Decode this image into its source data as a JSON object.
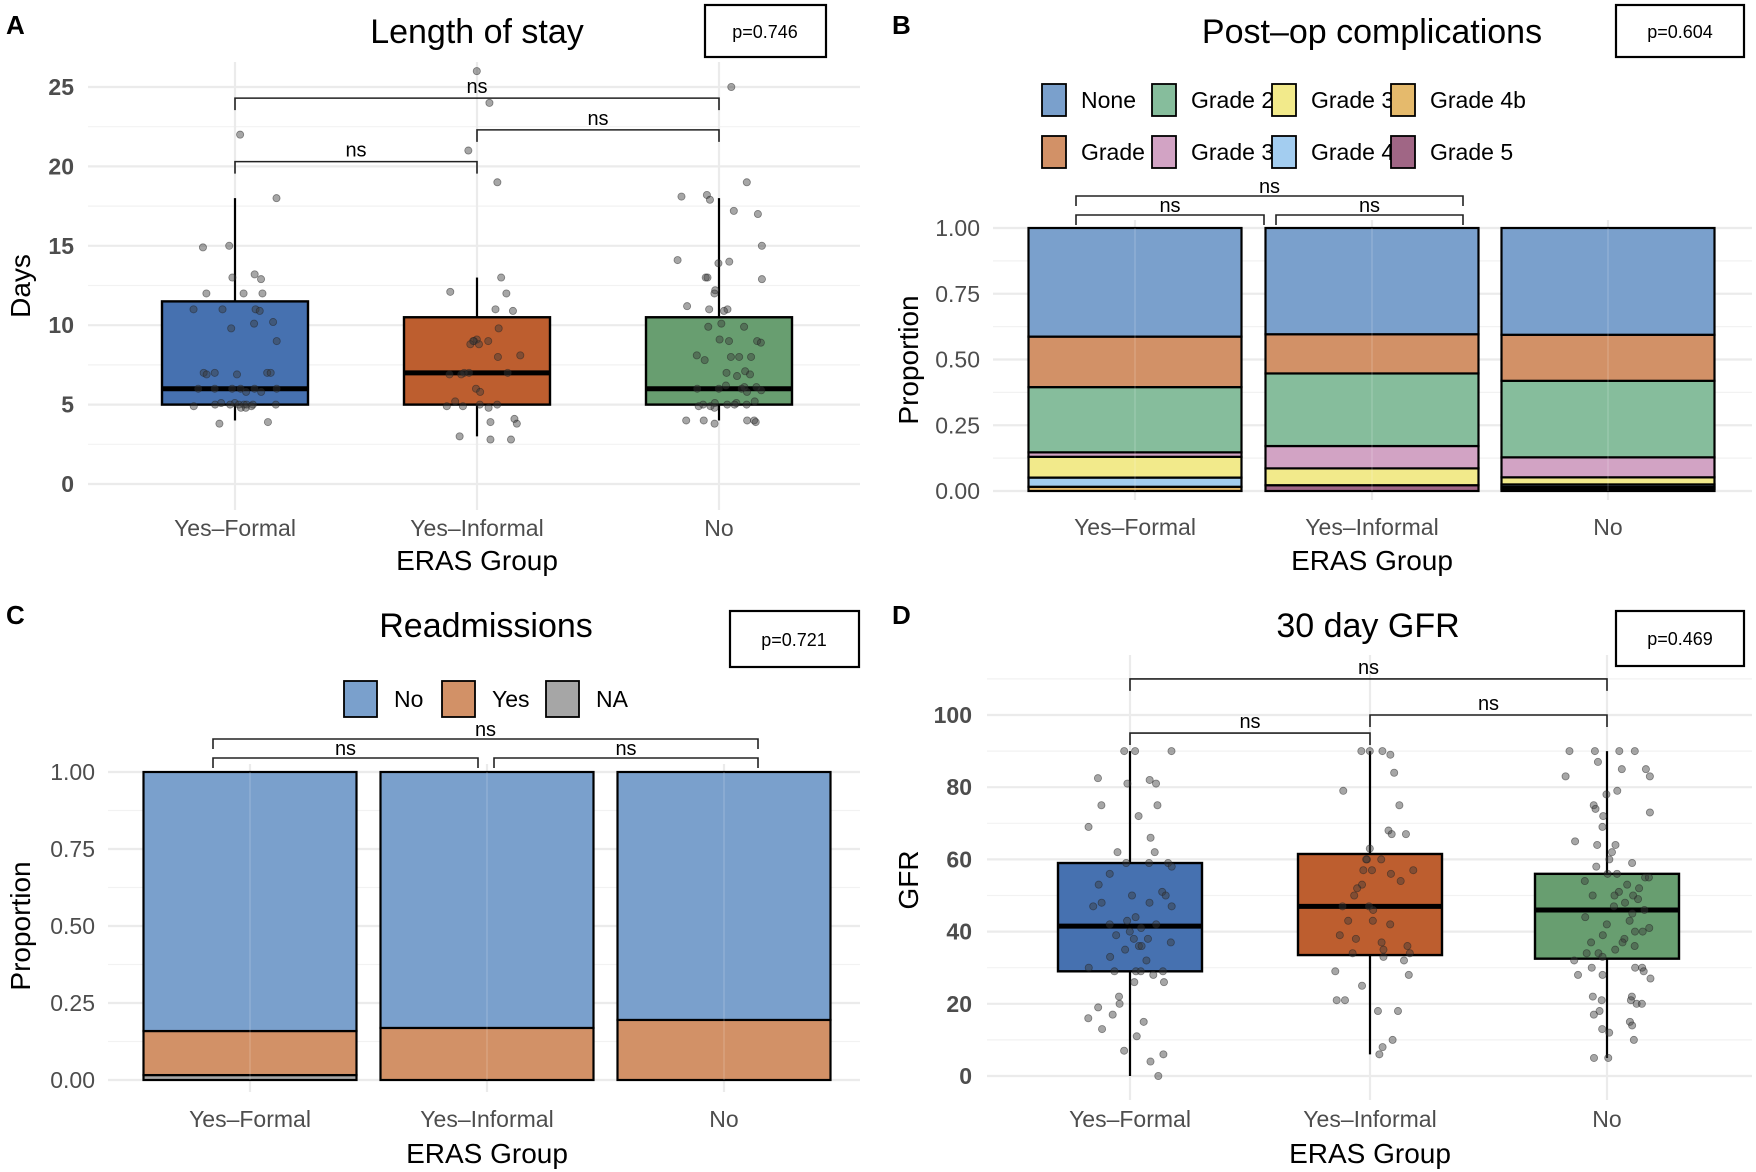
{
  "figure": {
    "panels": [
      "A",
      "B",
      "C",
      "D"
    ]
  },
  "chart_data": [
    {
      "panel": "A",
      "type": "box",
      "title": "Length of stay",
      "p_value_label": "p=0.746",
      "xlabel": "ERAS Group",
      "ylabel": "Days",
      "categories": [
        "Yes–Formal",
        "Yes–Informal",
        "No"
      ],
      "ylim": [
        0,
        26
      ],
      "yticks": [
        0,
        5,
        10,
        15,
        20,
        25
      ],
      "grid": true,
      "colors": [
        "#4671b0",
        "#bd5e2f",
        "#689e70"
      ],
      "boxes": [
        {
          "q1": 5,
          "median": 6,
          "q3": 11.5,
          "whisker_low": 4,
          "whisker_high": 18
        },
        {
          "q1": 5,
          "median": 7,
          "q3": 10.5,
          "whisker_low": 3,
          "whisker_high": 13
        },
        {
          "q1": 5,
          "median": 6,
          "q3": 10.5,
          "whisker_low": 4,
          "whisker_high": 18
        }
      ],
      "points": [
        [
          22,
          18,
          15,
          14.9,
          13.2,
          13,
          12.9,
          12,
          12,
          12,
          11,
          11,
          11,
          10.9,
          10.2,
          10.1,
          9.8,
          9,
          7,
          7,
          7,
          7,
          6.9,
          6.9,
          6,
          6,
          6,
          6,
          6,
          6,
          5.8,
          5.8,
          5.1,
          5.1,
          5,
          5,
          5,
          5,
          5,
          5,
          5,
          4.9,
          4.9,
          4.8,
          4.8,
          3.9,
          3.8
        ],
        [
          26,
          24,
          21,
          19,
          13,
          12.1,
          12,
          11,
          10.9,
          9.8,
          9.1,
          9,
          9,
          9,
          8.8,
          8.8,
          8.1,
          8,
          7,
          7,
          7,
          6.9,
          6.9,
          6,
          5.8,
          5.2,
          5,
          5,
          4.9,
          4.9,
          4.8,
          4.1,
          3.9,
          3.8,
          3,
          2.8,
          2.8
        ],
        [
          25,
          19,
          18.2,
          18.1,
          17.9,
          17.2,
          17,
          15,
          14.1,
          14,
          13.9,
          13,
          13,
          12.9,
          12.2,
          12,
          11.2,
          11,
          11,
          10.9,
          10.1,
          9.9,
          9.9,
          9.1,
          9,
          9,
          8.9,
          8.1,
          8,
          8,
          8,
          7.8,
          7.1,
          7,
          6.9,
          6.8,
          6.2,
          6.1,
          6.1,
          6,
          6,
          6,
          5.9,
          5.8,
          5.2,
          5.1,
          5.1,
          5,
          5,
          5,
          5,
          4.9,
          4.9,
          4.8,
          4,
          4,
          4,
          4,
          3.9,
          3.8
        ]
      ],
      "comparisons": [
        {
          "groups": [
            0,
            1
          ],
          "label": "ns",
          "y": 20.3
        },
        {
          "groups": [
            1,
            2
          ],
          "label": "ns",
          "y": 22.3
        },
        {
          "groups": [
            0,
            2
          ],
          "label": "ns",
          "y": 24.3
        }
      ]
    },
    {
      "panel": "B",
      "type": "stacked_bar",
      "title": "Post–op complications",
      "p_value_label": "p=0.604",
      "xlabel": "ERAS Group",
      "ylabel": "Proportion",
      "categories": [
        "Yes–Formal",
        "Yes–Informal",
        "No"
      ],
      "ylim": [
        0,
        1
      ],
      "yticks": [
        "0.00",
        "0.25",
        "0.50",
        "0.75",
        "1.00"
      ],
      "grid": true,
      "legend_position": "top",
      "legend": [
        {
          "label": "None",
          "color": "#7aa0cc"
        },
        {
          "label": "Grade 2",
          "color": "#86bd9c"
        },
        {
          "label": "Grade 3b",
          "color": "#f2ea8b"
        },
        {
          "label": "Grade 4b",
          "color": "#e5ba6c"
        },
        {
          "label": "Grade 1",
          "color": "#d29167"
        },
        {
          "label": "Grade 3a",
          "color": "#d2a3c4"
        },
        {
          "label": "Grade 4a",
          "color": "#a3cdf0"
        },
        {
          "label": "Grade 5",
          "color": "#a06685"
        }
      ],
      "stack_order_bottom_to_top": [
        "Grade 5",
        "Grade 4b",
        "Grade 4a",
        "Grade 3b",
        "Grade 3a",
        "Grade 2",
        "Grade 1",
        "None"
      ],
      "series": [
        {
          "name": "Grade 5",
          "values": [
            0.0,
            0.022,
            0.008
          ]
        },
        {
          "name": "Grade 4b",
          "values": [
            0.016,
            0.0,
            0.008
          ]
        },
        {
          "name": "Grade 4a",
          "values": [
            0.035,
            0.0,
            0.009
          ]
        },
        {
          "name": "Grade 3b",
          "values": [
            0.079,
            0.064,
            0.027
          ]
        },
        {
          "name": "Grade 3a",
          "values": [
            0.017,
            0.085,
            0.076
          ]
        },
        {
          "name": "Grade 2",
          "values": [
            0.248,
            0.276,
            0.291
          ]
        },
        {
          "name": "Grade 1",
          "values": [
            0.192,
            0.149,
            0.175
          ]
        },
        {
          "name": "None",
          "values": [
            0.413,
            0.404,
            0.406
          ]
        }
      ],
      "comparisons": [
        {
          "groups": [
            0,
            1
          ],
          "label": "ns",
          "level": 0
        },
        {
          "groups": [
            1,
            2
          ],
          "label": "ns",
          "level": 0
        },
        {
          "groups": [
            0,
            2
          ],
          "label": "ns",
          "level": 1
        }
      ]
    },
    {
      "panel": "C",
      "type": "stacked_bar",
      "title": "Readmissions",
      "p_value_label": "p=0.721",
      "xlabel": "ERAS Group",
      "ylabel": "Proportion",
      "categories": [
        "Yes–Formal",
        "Yes–Informal",
        "No"
      ],
      "ylim": [
        0,
        1
      ],
      "yticks": [
        "0.00",
        "0.25",
        "0.50",
        "0.75",
        "1.00"
      ],
      "grid": true,
      "legend_position": "top",
      "legend": [
        {
          "label": "No",
          "color": "#7aa0cc"
        },
        {
          "label": "Yes",
          "color": "#d29167"
        },
        {
          "label": "NA",
          "color": "#a6a6a6"
        }
      ],
      "stack_order_bottom_to_top": [
        "NA",
        "Yes",
        "No"
      ],
      "series": [
        {
          "name": "NA",
          "values": [
            0.016,
            0.0,
            0.0
          ]
        },
        {
          "name": "Yes",
          "values": [
            0.143,
            0.169,
            0.195
          ]
        },
        {
          "name": "No",
          "values": [
            0.841,
            0.831,
            0.805
          ]
        }
      ],
      "comparisons": [
        {
          "groups": [
            0,
            1
          ],
          "label": "ns",
          "level": 0
        },
        {
          "groups": [
            1,
            2
          ],
          "label": "ns",
          "level": 0
        },
        {
          "groups": [
            0,
            2
          ],
          "label": "ns",
          "level": 1
        }
      ]
    },
    {
      "panel": "D",
      "type": "box",
      "title": "30 day GFR",
      "p_value_label": "p=0.469",
      "xlabel": "ERAS Group",
      "ylabel": "GFR",
      "categories": [
        "Yes–Formal",
        "Yes–Informal",
        "No"
      ],
      "ylim": [
        0,
        110
      ],
      "yticks": [
        0,
        20,
        40,
        60,
        80,
        100
      ],
      "grid": true,
      "colors": [
        "#4671b0",
        "#bd5e2f",
        "#689e70"
      ],
      "boxes": [
        {
          "q1": 29,
          "median": 41.5,
          "q3": 59,
          "whisker_low": 0,
          "whisker_high": 90
        },
        {
          "q1": 33.5,
          "median": 47,
          "q3": 61.5,
          "whisker_low": 6,
          "whisker_high": 90
        },
        {
          "q1": 32.5,
          "median": 46,
          "q3": 56,
          "whisker_low": 5,
          "whisker_high": 90
        }
      ],
      "points": [
        [
          90,
          90,
          90,
          82.5,
          82,
          81,
          81,
          75,
          75,
          72,
          69,
          66,
          62,
          62,
          59,
          59,
          59,
          58,
          56,
          53,
          51,
          50,
          50,
          48,
          48,
          47,
          47,
          44,
          43,
          42,
          42,
          41,
          40,
          39,
          38,
          38,
          37,
          36,
          36,
          35,
          33,
          32,
          30,
          29,
          29,
          29,
          29,
          28,
          26,
          26,
          22,
          20,
          19,
          17,
          16,
          15,
          13,
          11,
          7,
          6,
          4,
          0
        ],
        [
          90,
          90,
          90,
          89,
          84,
          79,
          75,
          68,
          67,
          67,
          63,
          60,
          60,
          60,
          57,
          57,
          57,
          56,
          54,
          53,
          52,
          50,
          47,
          47,
          46,
          43,
          43,
          42,
          39,
          38,
          37,
          36,
          35,
          34,
          34,
          33,
          32,
          29,
          28,
          25,
          21,
          21,
          18,
          18,
          10,
          8,
          6
        ],
        [
          90,
          90,
          90,
          90,
          87,
          85,
          85,
          83,
          83,
          79,
          78,
          75,
          74,
          73,
          72,
          69,
          65,
          64,
          64,
          62,
          60,
          59,
          58,
          56,
          56,
          55,
          55,
          54,
          53,
          52,
          51,
          50,
          50,
          50,
          49,
          48,
          47,
          46,
          45,
          44,
          43,
          42,
          41,
          40,
          40,
          39,
          38,
          37,
          37,
          36,
          35,
          34,
          34,
          33,
          32,
          30,
          30,
          30,
          29,
          28,
          28,
          27,
          22,
          22,
          21,
          21,
          20,
          20,
          18,
          17,
          15,
          14,
          13,
          12,
          10,
          5,
          5
        ]
      ],
      "comparisons": [
        {
          "groups": [
            0,
            1
          ],
          "label": "ns",
          "y": 95
        },
        {
          "groups": [
            1,
            2
          ],
          "label": "ns",
          "y": 100
        },
        {
          "groups": [
            0,
            2
          ],
          "label": "ns",
          "y": 110
        }
      ]
    }
  ]
}
